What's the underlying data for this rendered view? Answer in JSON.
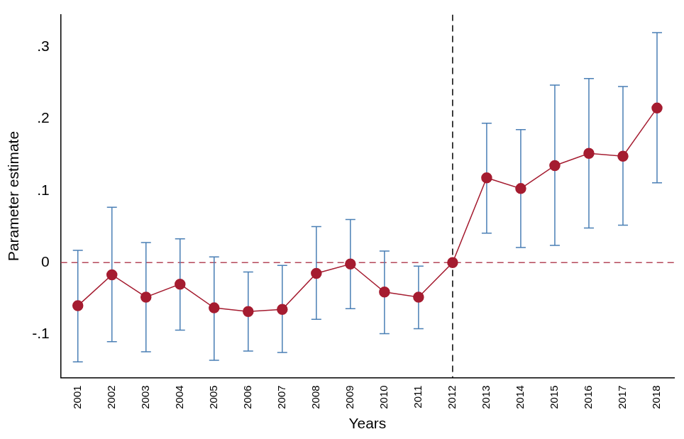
{
  "chart_data": {
    "type": "line",
    "y_label": "Parameter estimate",
    "x_label": "Years",
    "categories": [
      "2001",
      "2002",
      "2003",
      "2004",
      "2005",
      "2006",
      "2007",
      "2008",
      "2009",
      "2010",
      "2011",
      "2012",
      "2013",
      "2014",
      "2015",
      "2016",
      "2017",
      "2018"
    ],
    "values": [
      -0.06,
      -0.017,
      -0.048,
      -0.03,
      -0.063,
      -0.068,
      -0.065,
      -0.015,
      -0.002,
      -0.041,
      -0.048,
      0,
      0.118,
      0.103,
      0.135,
      0.152,
      0.148,
      0.215
    ],
    "color": "#a51c30",
    "marker": "circle",
    "error_bars": {
      "low": [
        -0.138,
        -0.11,
        -0.124,
        -0.094,
        -0.136,
        -0.123,
        -0.125,
        -0.079,
        -0.064,
        -0.099,
        -0.092,
        null,
        0.041,
        0.021,
        0.024,
        0.048,
        0.052,
        0.111
      ],
      "high": [
        0.017,
        0.077,
        0.028,
        0.033,
        0.008,
        -0.013,
        -0.004,
        0.05,
        0.06,
        0.016,
        -0.005,
        null,
        0.194,
        0.185,
        0.247,
        0.256,
        0.245,
        0.32
      ],
      "color": "#4a7fb5"
    },
    "reference_lines": {
      "y": 0,
      "y_color": "#b5485a",
      "x": "2012",
      "x_color": "#000000"
    },
    "ylim": [
      -0.16,
      0.345
    ],
    "yticks": [
      {
        "value": -0.1,
        "label": "-.1"
      },
      0,
      {
        "value": 0.1,
        "label": ".1"
      },
      {
        "value": 0.2,
        "label": ".2"
      },
      {
        "value": 0.3,
        "label": ".3"
      }
    ],
    "grid": false
  }
}
